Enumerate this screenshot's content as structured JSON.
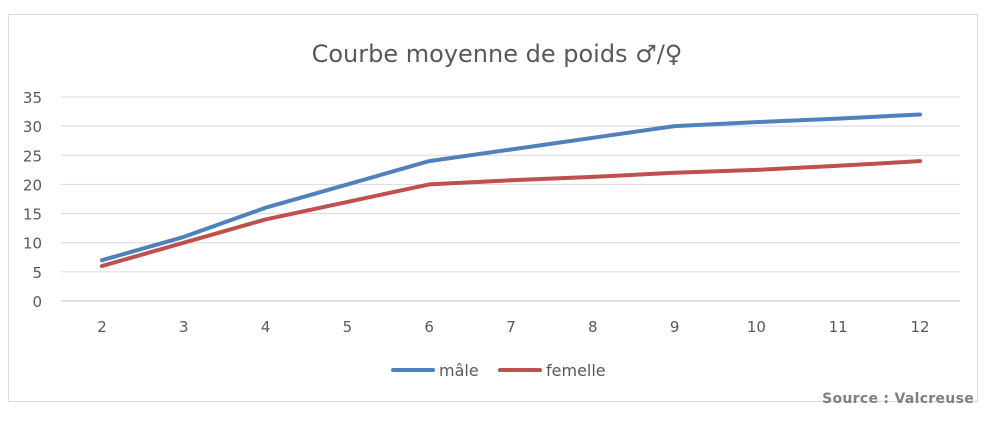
{
  "chart_data": {
    "type": "line",
    "title": "Courbe moyenne de poids ♂/♀",
    "xlabel": "",
    "ylabel": "",
    "x": [
      2,
      3,
      4,
      5,
      6,
      7,
      8,
      9,
      10,
      11,
      12
    ],
    "ylim": [
      0,
      35
    ],
    "yticks": [
      0,
      5,
      10,
      15,
      20,
      25,
      30,
      35
    ],
    "grid": true,
    "legend": "bottom",
    "series": [
      {
        "name": "mâle",
        "color": "#4f81bd",
        "values": [
          7,
          11,
          16,
          20,
          24,
          26,
          28,
          30,
          30.7,
          31.3,
          32
        ]
      },
      {
        "name": "femelle",
        "color": "#c0504d",
        "values": [
          6,
          10,
          14,
          17,
          20,
          20.7,
          21.3,
          22,
          22.5,
          23.2,
          24
        ]
      }
    ]
  },
  "source": "Source : Valcreuse"
}
